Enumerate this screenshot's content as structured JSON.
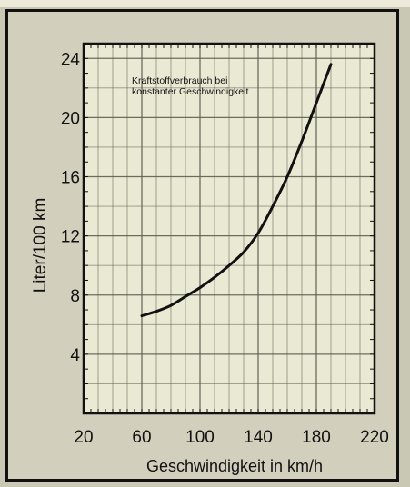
{
  "chart_data": {
    "type": "line",
    "title": "",
    "annotation": [
      "Kraftstoffverbrauch bei",
      "konstanter Geschwindigkeit"
    ],
    "xlabel": "Geschwindigkeit in km/h",
    "ylabel": "Liter/100 km",
    "xlim": [
      20,
      220
    ],
    "ylim": [
      0,
      25
    ],
    "x_ticks": [
      20,
      60,
      100,
      140,
      180,
      220
    ],
    "y_ticks": [
      4,
      8,
      12,
      16,
      20,
      24
    ],
    "grid": true,
    "legend": "none",
    "series": [
      {
        "x": [
          60,
          70,
          80,
          90,
          100,
          110,
          120,
          130,
          140,
          150,
          160,
          170,
          180,
          190
        ],
        "y": [
          6.6,
          6.9,
          7.3,
          7.9,
          8.5,
          9.2,
          10.0,
          10.9,
          12.2,
          14.0,
          16.0,
          18.4,
          21.0,
          23.6
        ]
      }
    ],
    "colors": {
      "background": "#c9c8b4",
      "plot": "#eae9d4",
      "grid": "#5f5e52",
      "line": "#111111"
    }
  }
}
